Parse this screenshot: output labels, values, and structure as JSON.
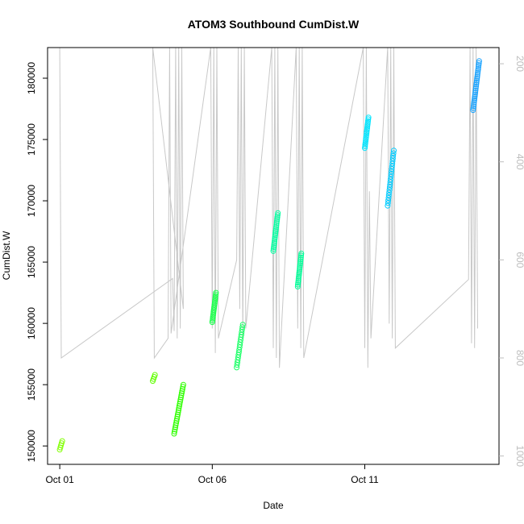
{
  "chart_data": {
    "type": "scatter",
    "title": "ATOM3 Southbound CumDist.W",
    "xlabel": "Date",
    "ylabel": "CumDist.W",
    "x_tick_labels": [
      {
        "value": 0,
        "label": "Oct 01"
      },
      {
        "value": 5,
        "label": "Oct 06"
      },
      {
        "value": 10,
        "label": "Oct 11"
      }
    ],
    "xlim": [
      -0.4,
      14.4
    ],
    "ylim": [
      148500,
      182500
    ],
    "y_ticks": [
      150000,
      155000,
      160000,
      165000,
      170000,
      175000,
      180000
    ],
    "y2_ticks": [
      200,
      400,
      600,
      800,
      1000
    ],
    "y2lim": [
      1017,
      167
    ],
    "grid": false,
    "legend": "none",
    "point_series": [
      {
        "x0": 0.0,
        "x1": 0.08,
        "y0": 149700,
        "y1": 150400,
        "n": 5,
        "color": "#80ff00"
      },
      {
        "x0": 3.05,
        "x1": 3.12,
        "y0": 155300,
        "y1": 155800,
        "n": 4,
        "color": "#60ff00"
      },
      {
        "x0": 3.75,
        "x1": 4.05,
        "y0": 151000,
        "y1": 155000,
        "n": 24,
        "color": "#2eff00"
      },
      {
        "x0": 5.0,
        "x1": 5.12,
        "y0": 160100,
        "y1": 162500,
        "n": 18,
        "color": "#1aff4a"
      },
      {
        "x0": 5.8,
        "x1": 6.0,
        "y0": 156400,
        "y1": 159900,
        "n": 18,
        "color": "#1aff66"
      },
      {
        "x0": 7.0,
        "x1": 7.15,
        "y0": 165900,
        "y1": 169000,
        "n": 20,
        "color": "#00ffa0"
      },
      {
        "x0": 7.8,
        "x1": 7.92,
        "y0": 163000,
        "y1": 165700,
        "n": 18,
        "color": "#00ff99"
      },
      {
        "x0": 10.0,
        "x1": 10.12,
        "y0": 174300,
        "y1": 176800,
        "n": 18,
        "color": "#00e5ff"
      },
      {
        "x0": 10.75,
        "x1": 10.95,
        "y0": 169600,
        "y1": 174100,
        "n": 22,
        "color": "#00ccff"
      },
      {
        "x0": 13.55,
        "x1": 13.75,
        "y0": 177400,
        "y1": 181400,
        "n": 26,
        "color": "#1aa3ff"
      }
    ],
    "line_series": {
      "name": "",
      "color": "#c8c8c8",
      "y_axis": "right",
      "points": [
        [
          0.0,
          167
        ],
        [
          0.05,
          800
        ],
        [
          3.7,
          638
        ],
        [
          3.75,
          745
        ],
        [
          3.8,
          167
        ],
        [
          3.85,
          760
        ],
        [
          3.9,
          167
        ],
        [
          3.95,
          740
        ],
        [
          4.0,
          167
        ],
        [
          4.05,
          700
        ],
        [
          3.05,
          167
        ],
        [
          3.1,
          800
        ],
        [
          3.55,
          760
        ],
        [
          3.6,
          167
        ],
        [
          3.65,
          750
        ],
        [
          4.95,
          167
        ],
        [
          5.0,
          740
        ],
        [
          5.05,
          167
        ],
        [
          5.1,
          790
        ],
        [
          5.15,
          167
        ],
        [
          5.2,
          760
        ],
        [
          5.8,
          600
        ],
        [
          5.85,
          167
        ],
        [
          5.9,
          700
        ],
        [
          5.95,
          167
        ],
        [
          6.0,
          760
        ],
        [
          6.05,
          167
        ],
        [
          6.1,
          740
        ],
        [
          6.95,
          167
        ],
        [
          7.0,
          780
        ],
        [
          7.05,
          167
        ],
        [
          7.1,
          800
        ],
        [
          7.15,
          167
        ],
        [
          7.2,
          820
        ],
        [
          7.75,
          167
        ],
        [
          7.8,
          740
        ],
        [
          7.85,
          167
        ],
        [
          7.9,
          780
        ],
        [
          7.95,
          167
        ],
        [
          8.0,
          800
        ],
        [
          9.95,
          167
        ],
        [
          10.0,
          780
        ],
        [
          10.05,
          167
        ],
        [
          10.1,
          820
        ],
        [
          10.15,
          460
        ],
        [
          10.2,
          760
        ],
        [
          10.75,
          167
        ],
        [
          10.8,
          730
        ],
        [
          10.85,
          167
        ],
        [
          10.9,
          760
        ],
        [
          10.95,
          167
        ],
        [
          11.0,
          780
        ],
        [
          13.4,
          640
        ],
        [
          13.45,
          167
        ],
        [
          13.5,
          770
        ],
        [
          13.55,
          167
        ],
        [
          13.6,
          780
        ],
        [
          13.65,
          167
        ],
        [
          13.7,
          740
        ]
      ]
    }
  }
}
